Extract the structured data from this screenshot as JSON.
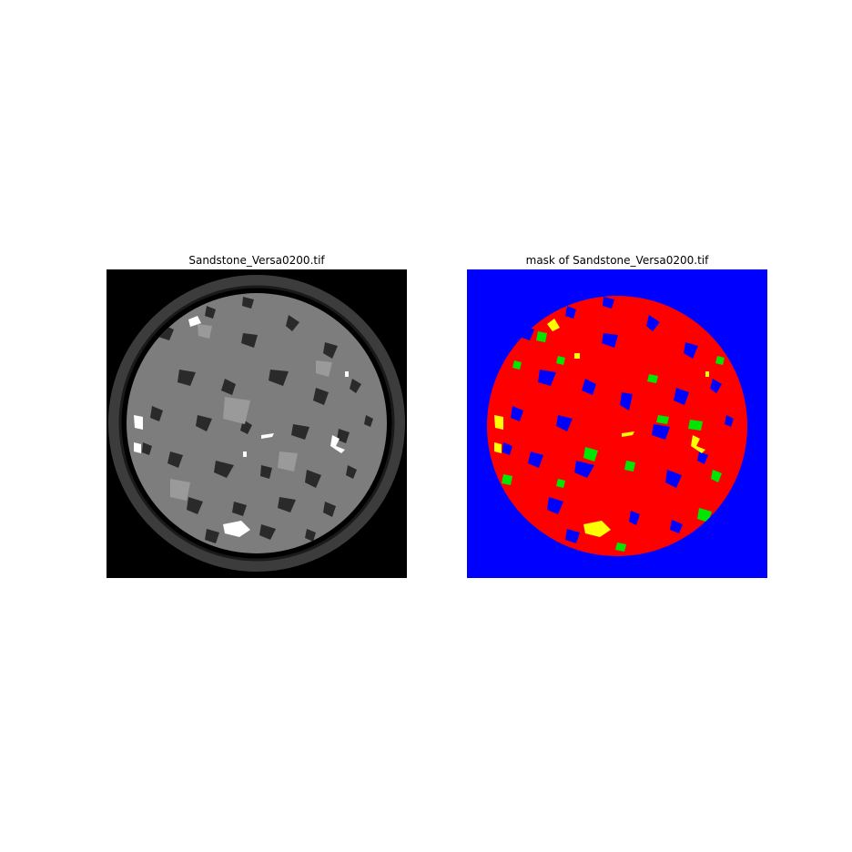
{
  "figure": {
    "left_panel": {
      "title": "Sandstone_Versa0200.tif",
      "image_kind": "grayscale CT slice of sandstone core"
    },
    "right_panel": {
      "title": "mask of Sandstone_Versa0200.tif",
      "image_kind": "segmentation mask",
      "colors": {
        "background": "#0000ff",
        "grain": "#ff0000",
        "pore": "#0000ff",
        "phase_green": "#00e600",
        "phase_yellow": "#ffff00"
      }
    },
    "gray_colors": {
      "background": "#000000",
      "grain": "#8a8a8a",
      "pore": "#262626",
      "bright": "#ffffff",
      "rim": "#4a4a4a"
    }
  }
}
